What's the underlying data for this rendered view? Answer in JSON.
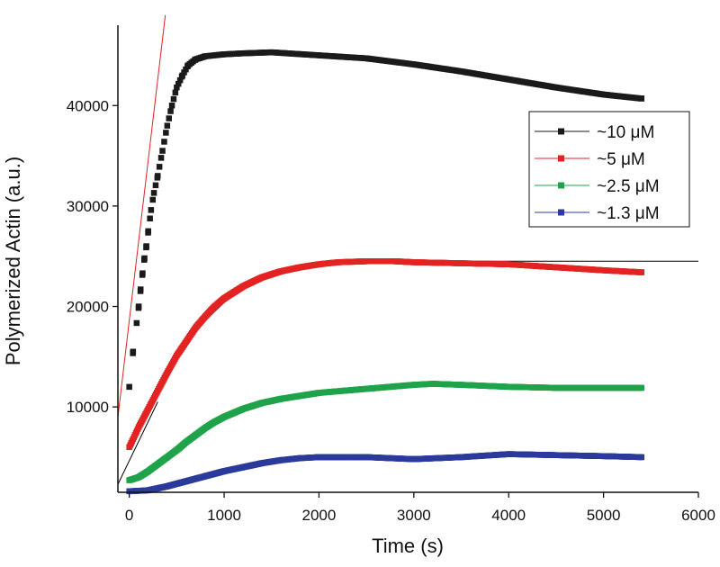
{
  "chart_data": {
    "type": "scatter",
    "title": "",
    "xlabel": "Time (s)",
    "ylabel": "Polymerized Actin (a.u.)",
    "xlim": [
      -120,
      6000
    ],
    "ylim": [
      1500,
      48000
    ],
    "xticks": [
      0,
      1000,
      2000,
      3000,
      4000,
      5000,
      6000
    ],
    "yticks": [
      10000,
      20000,
      30000,
      40000
    ],
    "grid": false,
    "legend_position": "right",
    "series": [
      {
        "name": "~10 μM",
        "color": "#1a1a1a",
        "points": [
          [
            0,
            12000
          ],
          [
            20,
            14000
          ],
          [
            40,
            15500
          ],
          [
            60,
            17000
          ],
          [
            80,
            18500
          ],
          [
            100,
            20000
          ],
          [
            120,
            21700
          ],
          [
            140,
            23300
          ],
          [
            160,
            24800
          ],
          [
            180,
            26000
          ],
          [
            200,
            27500
          ],
          [
            230,
            29600
          ],
          [
            260,
            31300
          ],
          [
            300,
            33000
          ],
          [
            350,
            35500
          ],
          [
            400,
            38000
          ],
          [
            450,
            40000
          ],
          [
            500,
            41800
          ],
          [
            560,
            43000
          ],
          [
            620,
            44000
          ],
          [
            700,
            44600
          ],
          [
            800,
            44900
          ],
          [
            1000,
            45100
          ],
          [
            1200,
            45200
          ],
          [
            1500,
            45300
          ],
          [
            2000,
            45000
          ],
          [
            2500,
            44700
          ],
          [
            3000,
            44100
          ],
          [
            3500,
            43400
          ],
          [
            4000,
            42600
          ],
          [
            4500,
            41800
          ],
          [
            5000,
            41100
          ],
          [
            5400,
            40700
          ]
        ]
      },
      {
        "name": "~5 μM",
        "color": "#e32222",
        "points": [
          [
            0,
            6000
          ],
          [
            50,
            7000
          ],
          [
            100,
            8000
          ],
          [
            200,
            9800
          ],
          [
            300,
            11600
          ],
          [
            400,
            13400
          ],
          [
            500,
            15100
          ],
          [
            600,
            16500
          ],
          [
            700,
            17900
          ],
          [
            800,
            19000
          ],
          [
            900,
            20000
          ],
          [
            1000,
            20800
          ],
          [
            1200,
            22000
          ],
          [
            1400,
            22900
          ],
          [
            1600,
            23500
          ],
          [
            1800,
            23900
          ],
          [
            2000,
            24200
          ],
          [
            2200,
            24400
          ],
          [
            2500,
            24500
          ],
          [
            2800,
            24500
          ],
          [
            3000,
            24400
          ],
          [
            3500,
            24300
          ],
          [
            4000,
            24200
          ],
          [
            4500,
            23900
          ],
          [
            5000,
            23600
          ],
          [
            5400,
            23400
          ]
        ]
      },
      {
        "name": "~2.5 μM",
        "color": "#1fa34a",
        "points": [
          [
            0,
            2700
          ],
          [
            100,
            3000
          ],
          [
            200,
            3600
          ],
          [
            300,
            4300
          ],
          [
            400,
            5000
          ],
          [
            500,
            5700
          ],
          [
            600,
            6500
          ],
          [
            700,
            7200
          ],
          [
            800,
            7900
          ],
          [
            900,
            8500
          ],
          [
            1000,
            9000
          ],
          [
            1200,
            9800
          ],
          [
            1400,
            10400
          ],
          [
            1600,
            10800
          ],
          [
            1800,
            11100
          ],
          [
            2000,
            11400
          ],
          [
            2500,
            11800
          ],
          [
            3000,
            12200
          ],
          [
            3200,
            12300
          ],
          [
            3500,
            12200
          ],
          [
            4000,
            12000
          ],
          [
            4500,
            11900
          ],
          [
            5000,
            11900
          ],
          [
            5400,
            11900
          ]
        ]
      },
      {
        "name": "~1.3 μM",
        "color": "#2b3a9b",
        "points": [
          [
            0,
            1600
          ],
          [
            200,
            1700
          ],
          [
            400,
            2100
          ],
          [
            600,
            2600
          ],
          [
            800,
            3100
          ],
          [
            1000,
            3600
          ],
          [
            1200,
            4000
          ],
          [
            1400,
            4400
          ],
          [
            1600,
            4700
          ],
          [
            1800,
            4900
          ],
          [
            2000,
            5000
          ],
          [
            2500,
            5000
          ],
          [
            3000,
            4800
          ],
          [
            3500,
            5000
          ],
          [
            4000,
            5300
          ],
          [
            4500,
            5200
          ],
          [
            5000,
            5100
          ],
          [
            5400,
            5000
          ]
        ]
      }
    ],
    "fit_lines": [
      {
        "color": "#e32222",
        "points": [
          [
            -120,
            9000
          ],
          [
            380,
            49000
          ]
        ]
      },
      {
        "color": "#000000",
        "points": [
          [
            -120,
            2300
          ],
          [
            300,
            10500
          ]
        ]
      },
      {
        "color": "#000000",
        "points": [
          [
            0,
            6000
          ],
          [
            200,
            9900
          ],
          [
            400,
            13300
          ],
          [
            600,
            16200
          ],
          [
            800,
            18600
          ],
          [
            1000,
            20400
          ],
          [
            1200,
            21700
          ],
          [
            1400,
            22700
          ],
          [
            1600,
            23400
          ],
          [
            1800,
            23800
          ],
          [
            2000,
            24100
          ],
          [
            2400,
            24400
          ],
          [
            3000,
            24500
          ],
          [
            4000,
            24500
          ],
          [
            5000,
            24500
          ],
          [
            6000,
            24500
          ]
        ]
      }
    ]
  }
}
